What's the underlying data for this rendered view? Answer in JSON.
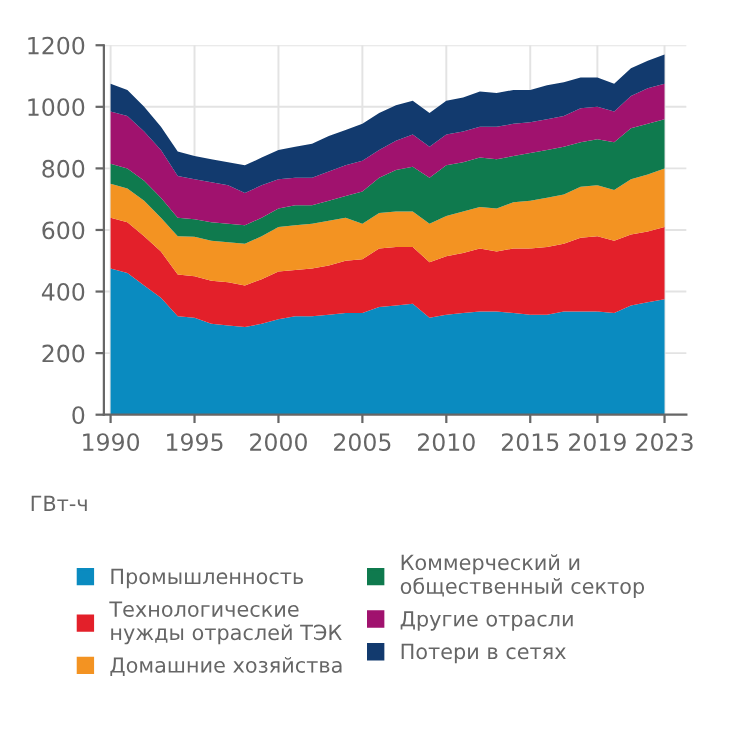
{
  "chart_data": {
    "type": "area",
    "stacked": true,
    "ylabel": "ГВт-ч",
    "x": [
      1990,
      1991,
      1992,
      1993,
      1994,
      1995,
      1996,
      1997,
      1998,
      1999,
      2000,
      2001,
      2002,
      2003,
      2004,
      2005,
      2006,
      2007,
      2008,
      2009,
      2010,
      2011,
      2012,
      2013,
      2014,
      2015,
      2016,
      2017,
      2018,
      2019,
      2020,
      2021,
      2022,
      2023
    ],
    "xlim": [
      1989.6,
      2024.3
    ],
    "xticks": [
      1990,
      1995,
      2000,
      2005,
      2010,
      2015,
      2019,
      2023
    ],
    "ylim": [
      0,
      1200
    ],
    "yticks": [
      0,
      200,
      400,
      600,
      800,
      1000,
      1200
    ],
    "grid": true,
    "legend": "bottom",
    "series": [
      {
        "name": "Промышленность",
        "color": "#0a8bc0",
        "values": [
          475,
          460,
          420,
          380,
          320,
          315,
          295,
          290,
          285,
          295,
          310,
          320,
          320,
          325,
          330,
          330,
          350,
          355,
          360,
          315,
          325,
          330,
          335,
          335,
          330,
          325,
          325,
          335,
          335,
          335,
          330,
          355,
          365,
          375
        ]
      },
      {
        "name": "Технологические нужды отраслей ТЭК",
        "color": "#e3202a",
        "values": [
          165,
          165,
          160,
          150,
          135,
          135,
          140,
          140,
          135,
          145,
          155,
          150,
          155,
          160,
          170,
          175,
          190,
          190,
          185,
          180,
          190,
          195,
          205,
          195,
          210,
          215,
          220,
          220,
          240,
          245,
          235,
          230,
          230,
          235
        ]
      },
      {
        "name": "Домашние хозяйства",
        "color": "#f39322",
        "values": [
          110,
          110,
          115,
          110,
          125,
          128,
          130,
          130,
          135,
          140,
          145,
          145,
          145,
          145,
          140,
          115,
          115,
          115,
          115,
          125,
          130,
          135,
          135,
          140,
          150,
          155,
          160,
          160,
          165,
          165,
          165,
          180,
          185,
          190
        ]
      },
      {
        "name": "Коммерческий и общественный сектор",
        "color": "#0f7a4e",
        "values": [
          65,
          65,
          65,
          65,
          60,
          57,
          60,
          60,
          60,
          60,
          60,
          65,
          60,
          65,
          70,
          105,
          115,
          135,
          145,
          150,
          165,
          160,
          160,
          160,
          150,
          155,
          155,
          155,
          145,
          150,
          155,
          165,
          165,
          160
        ]
      },
      {
        "name": "Другие отрасли",
        "color": "#a0126e",
        "values": [
          170,
          170,
          160,
          155,
          135,
          130,
          130,
          125,
          105,
          105,
          95,
          90,
          90,
          95,
          100,
          100,
          90,
          95,
          105,
          100,
          100,
          100,
          100,
          105,
          105,
          100,
          100,
          100,
          110,
          105,
          100,
          105,
          115,
          115
        ]
      },
      {
        "name": "Потери в сетях",
        "color": "#123a6e",
        "values": [
          90,
          85,
          80,
          75,
          80,
          75,
          75,
          75,
          90,
          90,
          95,
          100,
          110,
          115,
          115,
          120,
          120,
          115,
          110,
          110,
          110,
          110,
          115,
          110,
          110,
          105,
          110,
          110,
          100,
          95,
          90,
          90,
          90,
          95
        ]
      }
    ]
  }
}
